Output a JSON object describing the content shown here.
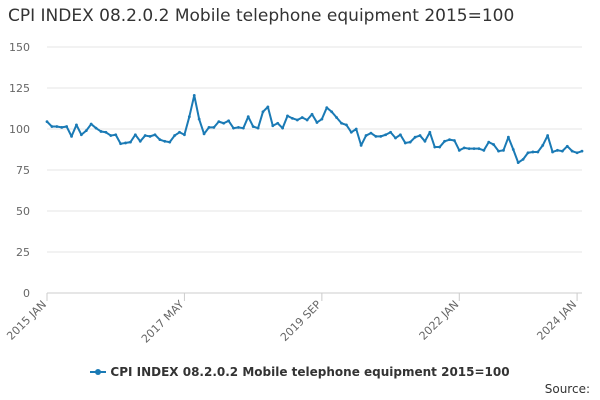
{
  "title": "CPI INDEX 08.2.0.2 Mobile telephone equipment 2015=100",
  "source": "Source:",
  "chart_data": {
    "type": "line",
    "title": "CPI INDEX 08.2.0.2 Mobile telephone equipment 2015=100",
    "xlabel": "",
    "ylabel": "",
    "ylim": [
      0,
      150
    ],
    "yticks": [
      0,
      25,
      50,
      75,
      100,
      125,
      150
    ],
    "xticks": [
      {
        "index": 0,
        "label": "2015 JAN"
      },
      {
        "index": 28,
        "label": "2017 MAY"
      },
      {
        "index": 56,
        "label": "2019 SEP"
      },
      {
        "index": 84,
        "label": "2022 JAN"
      },
      {
        "index": 108,
        "label": "2024 JAN"
      }
    ],
    "grid": "horizontal",
    "legend": "bottom",
    "color": "#1a7ab5",
    "series": [
      {
        "name": "CPI INDEX 08.2.0.2 Mobile telephone equipment 2015=100",
        "x_start": "2015 JAN",
        "frequency": "monthly",
        "values": [
          104.5,
          101.5,
          101.5,
          101.0,
          101.5,
          95.5,
          102.5,
          96.5,
          99.0,
          103.0,
          100.5,
          98.5,
          98.0,
          96.0,
          96.5,
          91.0,
          91.5,
          92.0,
          96.5,
          92.5,
          96.0,
          95.5,
          96.5,
          93.5,
          92.5,
          92.0,
          96.0,
          98.0,
          96.5,
          107.5,
          120.5,
          106.0,
          97.0,
          101.0,
          101.0,
          104.5,
          103.5,
          105.0,
          100.5,
          101.0,
          100.5,
          107.5,
          101.5,
          100.5,
          110.5,
          113.5,
          102.0,
          103.5,
          100.5,
          108.0,
          106.5,
          105.5,
          107.0,
          105.5,
          109.0,
          104.0,
          106.0,
          113.0,
          110.5,
          107.0,
          103.5,
          102.5,
          98.0,
          100.0,
          90.0,
          96.0,
          97.5,
          95.5,
          95.5,
          96.5,
          98.0,
          94.5,
          96.5,
          91.5,
          92.0,
          95.0,
          96.0,
          92.5,
          98.0,
          89.0,
          89.0,
          92.5,
          93.5,
          93.0,
          87.0,
          88.5,
          88.0,
          88.0,
          88.0,
          87.0,
          92.0,
          90.5,
          86.5,
          87.0,
          95.0,
          87.5,
          79.5,
          81.5,
          85.5,
          86.0,
          86.0,
          90.0,
          96.0,
          86.0,
          87.0,
          86.5,
          89.5,
          86.5,
          85.5,
          86.5
        ]
      }
    ]
  }
}
